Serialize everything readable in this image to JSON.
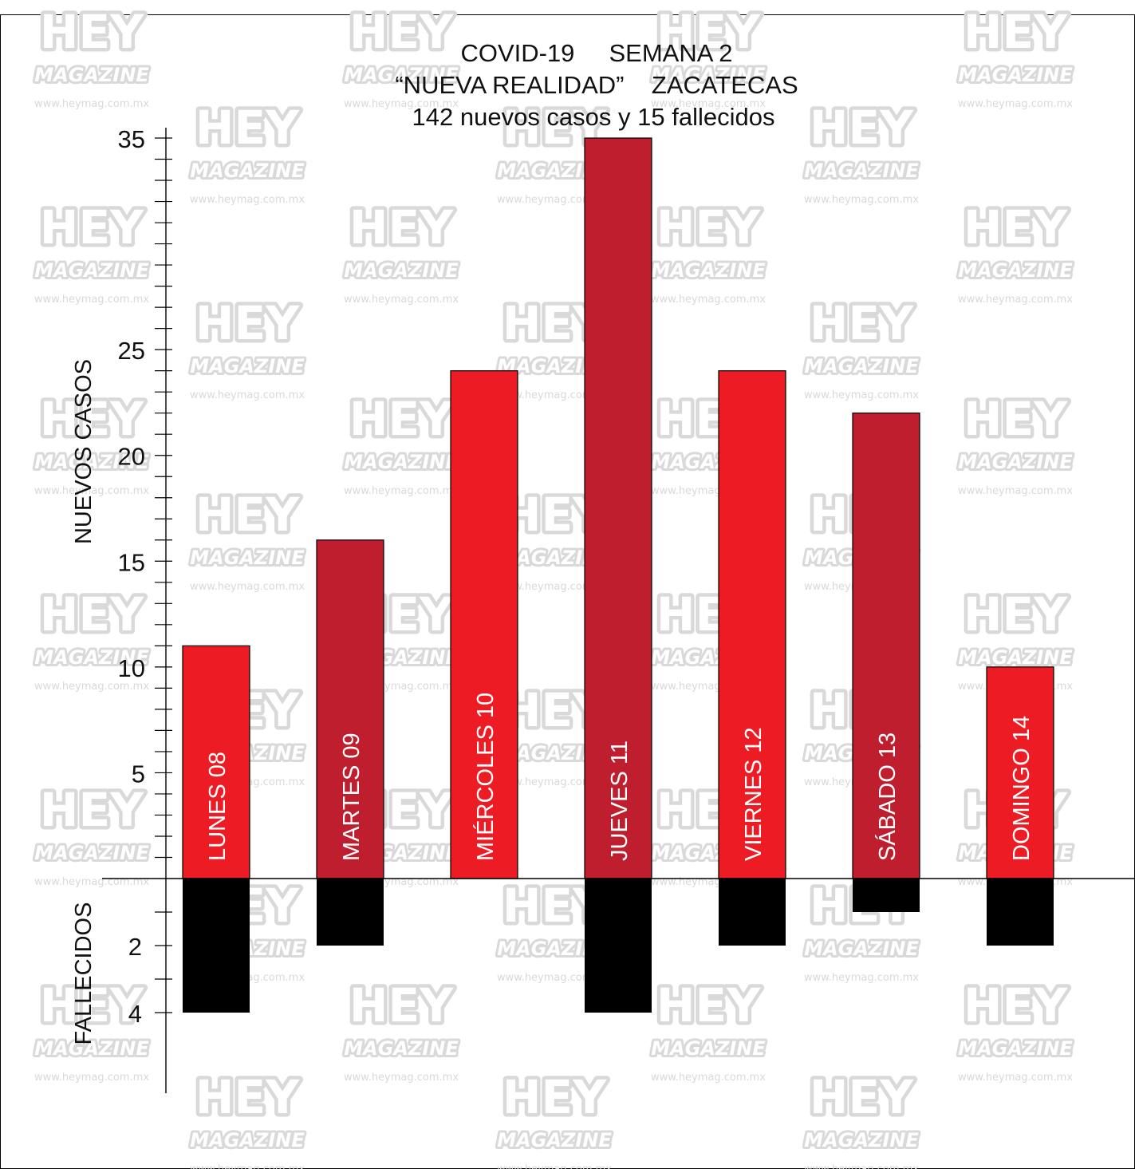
{
  "chart_data": {
    "type": "bar",
    "title_lines": [
      "COVID-19     SEMANA 2",
      "“NUEVA REALIDAD”    ZACATECAS",
      "142 nuevos casos y 15 fallecidos"
    ],
    "categories": [
      "LUNES 08",
      "MARTES 09",
      "MIÉRCOLES 10",
      "JUEVES 11",
      "VIERNES 12",
      "SÁBADO 13",
      "DOMINGO 14"
    ],
    "series": [
      {
        "name": "NUEVOS CASOS",
        "values": [
          11,
          16,
          24,
          35,
          24,
          22,
          10
        ]
      },
      {
        "name": "FALLECIDOS",
        "values": [
          4,
          2,
          0,
          4,
          2,
          1,
          2
        ]
      }
    ],
    "ylabel_top": "NUEVOS CASOS",
    "ylabel_bottom": "FALLECIDOS",
    "yticks_top": [
      5,
      10,
      15,
      20,
      25,
      35
    ],
    "yticks_bottom": [
      2,
      4
    ],
    "ylim_top": [
      0,
      35
    ],
    "ylim_bottom": [
      0,
      4
    ],
    "colors": {
      "bar_a": "#ed1c24",
      "bar_b": "#be1e2d",
      "deaths": "#000000",
      "axis": "#000000",
      "watermark": "#d9d9d9"
    },
    "watermark": {
      "line1": "HEY",
      "line2": "MAGAZINE",
      "url": "www.heymag.com.mx"
    }
  }
}
